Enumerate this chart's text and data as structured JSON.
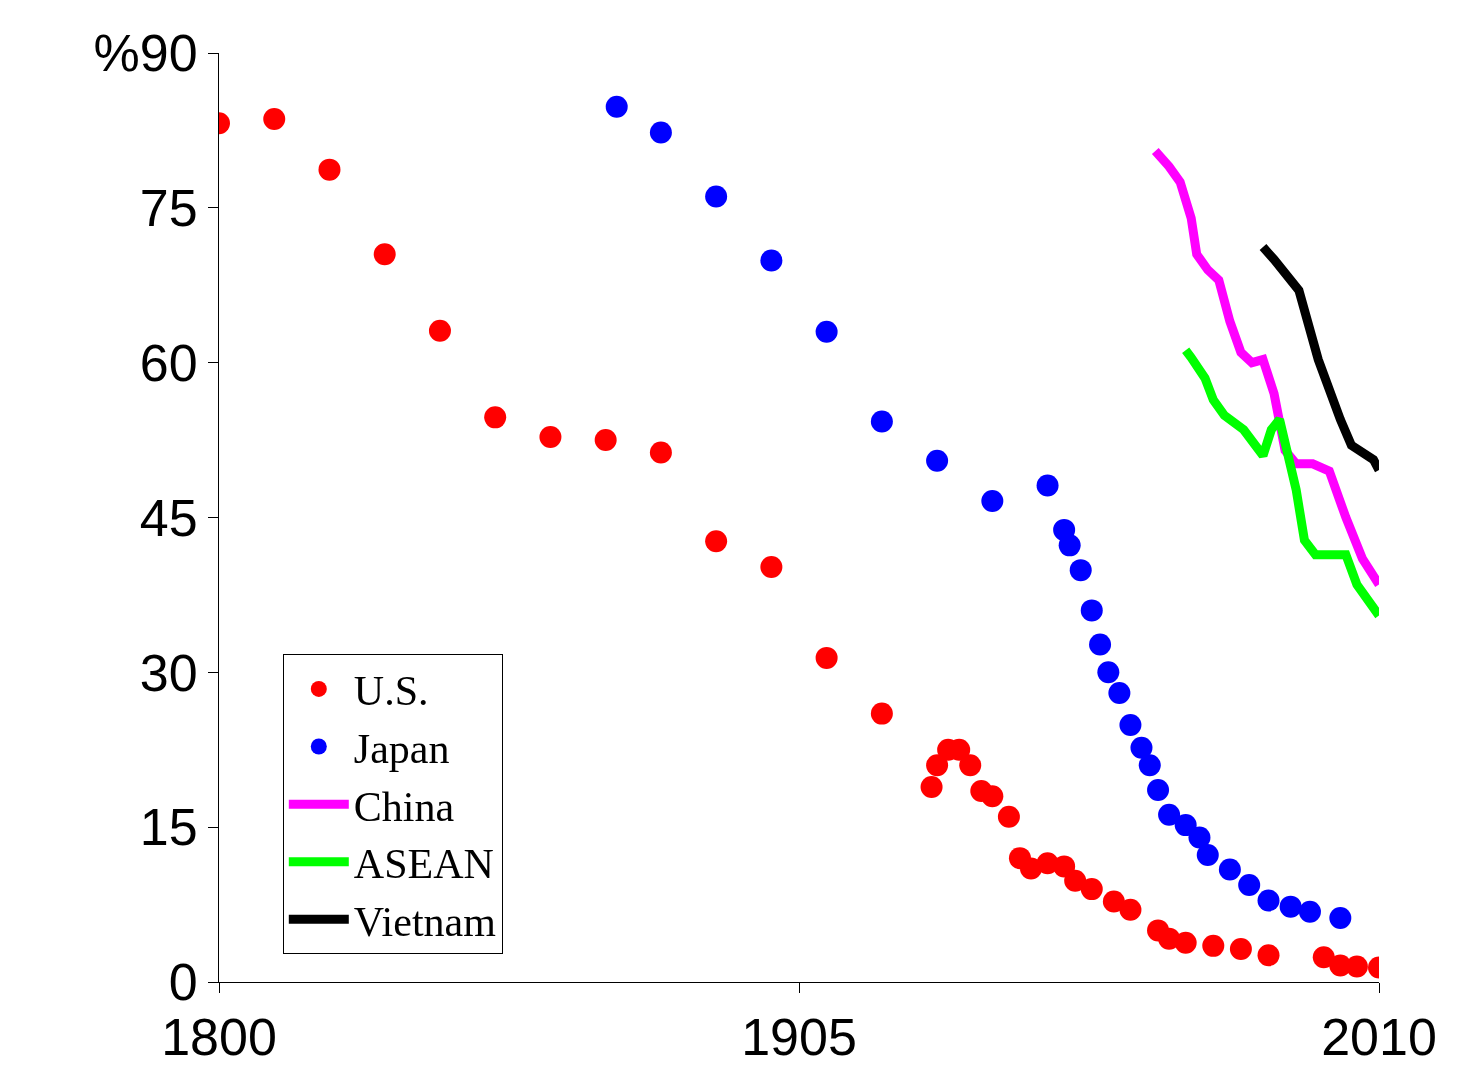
{
  "chart_data": {
    "type": "line",
    "xlim": [
      1800,
      2010
    ],
    "xticks": [
      1800,
      1905,
      2010
    ],
    "ylim": [
      0,
      90
    ],
    "yticks": [
      0,
      15,
      30,
      45,
      60,
      75,
      {
        "value": 90,
        "label": "%90"
      }
    ],
    "legend": "bottom left",
    "marker": "circle",
    "series": [
      {
        "name": "U.S.",
        "type": "scatter",
        "color": "#ff0000",
        "x": [
          1800,
          1810,
          1820,
          1830,
          1840,
          1850,
          1860,
          1870,
          1880,
          1890,
          1900,
          1910,
          1920,
          1929,
          1930,
          1932,
          1934,
          1936,
          1938,
          1940,
          1943,
          1945,
          1947,
          1950,
          1953,
          1955,
          1958,
          1962,
          1965,
          1970,
          1972,
          1975,
          1980,
          1985,
          1990,
          2000,
          2003,
          2006,
          2010
        ],
        "values": [
          83.2,
          83.6,
          78.7,
          70.5,
          63.1,
          54.7,
          52.8,
          52.5,
          51.3,
          42.7,
          40.2,
          31.4,
          26.0,
          18.9,
          21,
          22.5,
          22.5,
          21,
          18.5,
          18,
          16,
          12,
          11,
          11.5,
          11.2,
          9.8,
          9,
          7.8,
          7,
          5,
          4.2,
          3.8,
          3.5,
          3.2,
          2.6,
          2.4,
          1.6,
          1.5,
          1.4
        ]
      },
      {
        "name": "Japan",
        "type": "scatter",
        "color": "#0000ff",
        "x": [
          1872,
          1880,
          1890,
          1900,
          1910,
          1920,
          1930,
          1940,
          1950,
          1953,
          1954,
          1956,
          1958,
          1959.5,
          1961,
          1963,
          1965,
          1967,
          1968.5,
          1970,
          1972,
          1975,
          1977.5,
          1979,
          1983,
          1986.5,
          1990,
          1994,
          1997.5,
          2003
        ],
        "values": [
          84.8,
          82.3,
          76.1,
          69.9,
          63.0,
          54.3,
          50.5,
          46.6,
          48.1,
          43.8,
          42.3,
          39.9,
          36,
          32.7,
          30,
          28,
          24.9,
          22.7,
          21,
          18.6,
          16.2,
          15.2,
          14,
          12.3,
          10.9,
          9.4,
          7.9,
          7.3,
          6.8,
          6.2
        ]
      },
      {
        "name": "China",
        "marker": "none",
        "color": "#ff00ff",
        "x": [
          1969.5,
          1972,
          1974,
          1976,
          1977,
          1979,
          1981,
          1983,
          1985,
          1987,
          1989,
          1991,
          1993,
          1995,
          1998,
          2001,
          2004,
          2007,
          2010
        ],
        "values": [
          80.5,
          79,
          77.5,
          74,
          70.5,
          69,
          68,
          64,
          61,
          60,
          60.3,
          57,
          51.5,
          50.2,
          50.2,
          49.5,
          45,
          41,
          38.5
        ]
      },
      {
        "name": "ASEAN",
        "marker": "none",
        "color": "#00ff00",
        "x": [
          1975,
          1976,
          1978.5,
          1980,
          1982,
          1985.5,
          1989,
          1990.5,
          1992,
          1995,
          1996.5,
          1998.5,
          2004,
          2006,
          2010
        ],
        "values": [
          61.2,
          60.5,
          58.5,
          56.4,
          54.9,
          53.5,
          51,
          53.5,
          54.5,
          47.7,
          42.8,
          41.4,
          41.4,
          38.5,
          35.5
        ]
      },
      {
        "name": "Vietnam",
        "marker": "none",
        "color": "#000000",
        "x": [
          1989,
          1991,
          1995.5,
          1999,
          2003,
          2005,
          2009,
          2010
        ],
        "values": [
          71.2,
          70,
          67,
          60.3,
          54.5,
          52,
          50.6,
          49.6
        ]
      }
    ]
  }
}
